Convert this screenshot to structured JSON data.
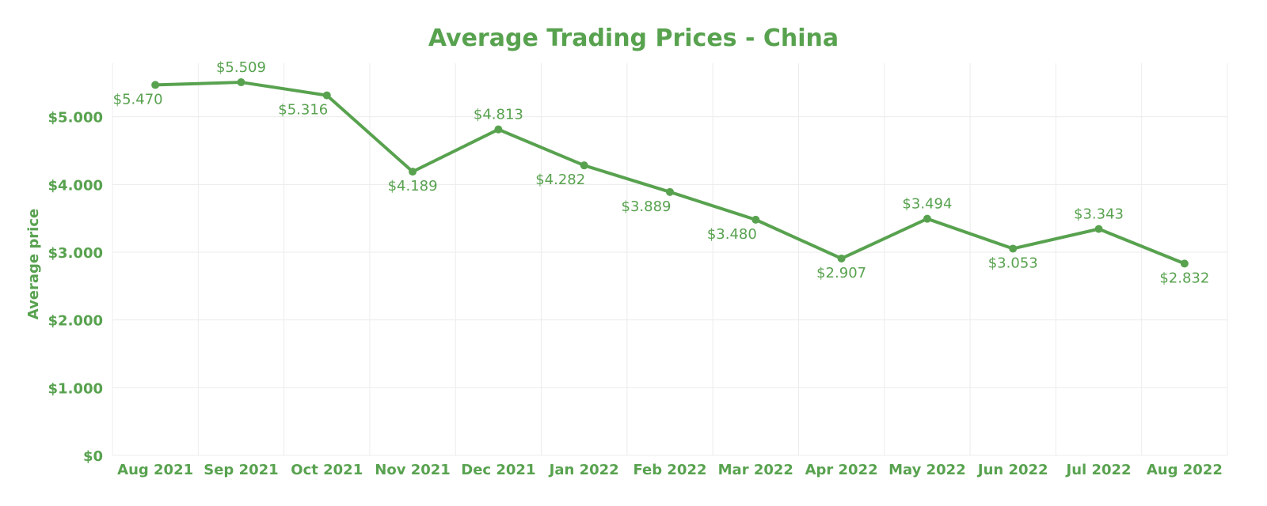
{
  "colors": {
    "series": "#58a24f",
    "grid": "#ececec",
    "background": "#ffffff"
  },
  "chart_data": {
    "type": "line",
    "title": "Average Trading Prices - China",
    "xlabel": "",
    "ylabel": "Average price",
    "categories": [
      "Aug 2021",
      "Sep 2021",
      "Oct 2021",
      "Nov 2021",
      "Dec 2021",
      "Jan 2022",
      "Feb 2022",
      "Mar 2022",
      "Apr 2022",
      "May 2022",
      "Jun 2022",
      "Jul 2022",
      "Aug 2022"
    ],
    "series": [
      {
        "values": [
          5470,
          5509,
          5316,
          4189,
          4813,
          4282,
          3889,
          3480,
          2907,
          3494,
          3053,
          3343,
          2832
        ],
        "labels": [
          "$5.470",
          "$5.509",
          "$5.316",
          "$4.189",
          "$4.813",
          "$4.282",
          "$3.889",
          "$3.480",
          "$2.907",
          "$3.494",
          "$3.053",
          "$3.343",
          "$2.832"
        ]
      }
    ],
    "ylim": [
      0,
      6000
    ],
    "yticks": [
      0,
      1000,
      2000,
      3000,
      4000,
      5000
    ],
    "ytick_labels": [
      "$0",
      "$1.000",
      "$2.000",
      "$3.000",
      "$4.000",
      "$5.000"
    ],
    "grid": true,
    "legend": "none"
  }
}
